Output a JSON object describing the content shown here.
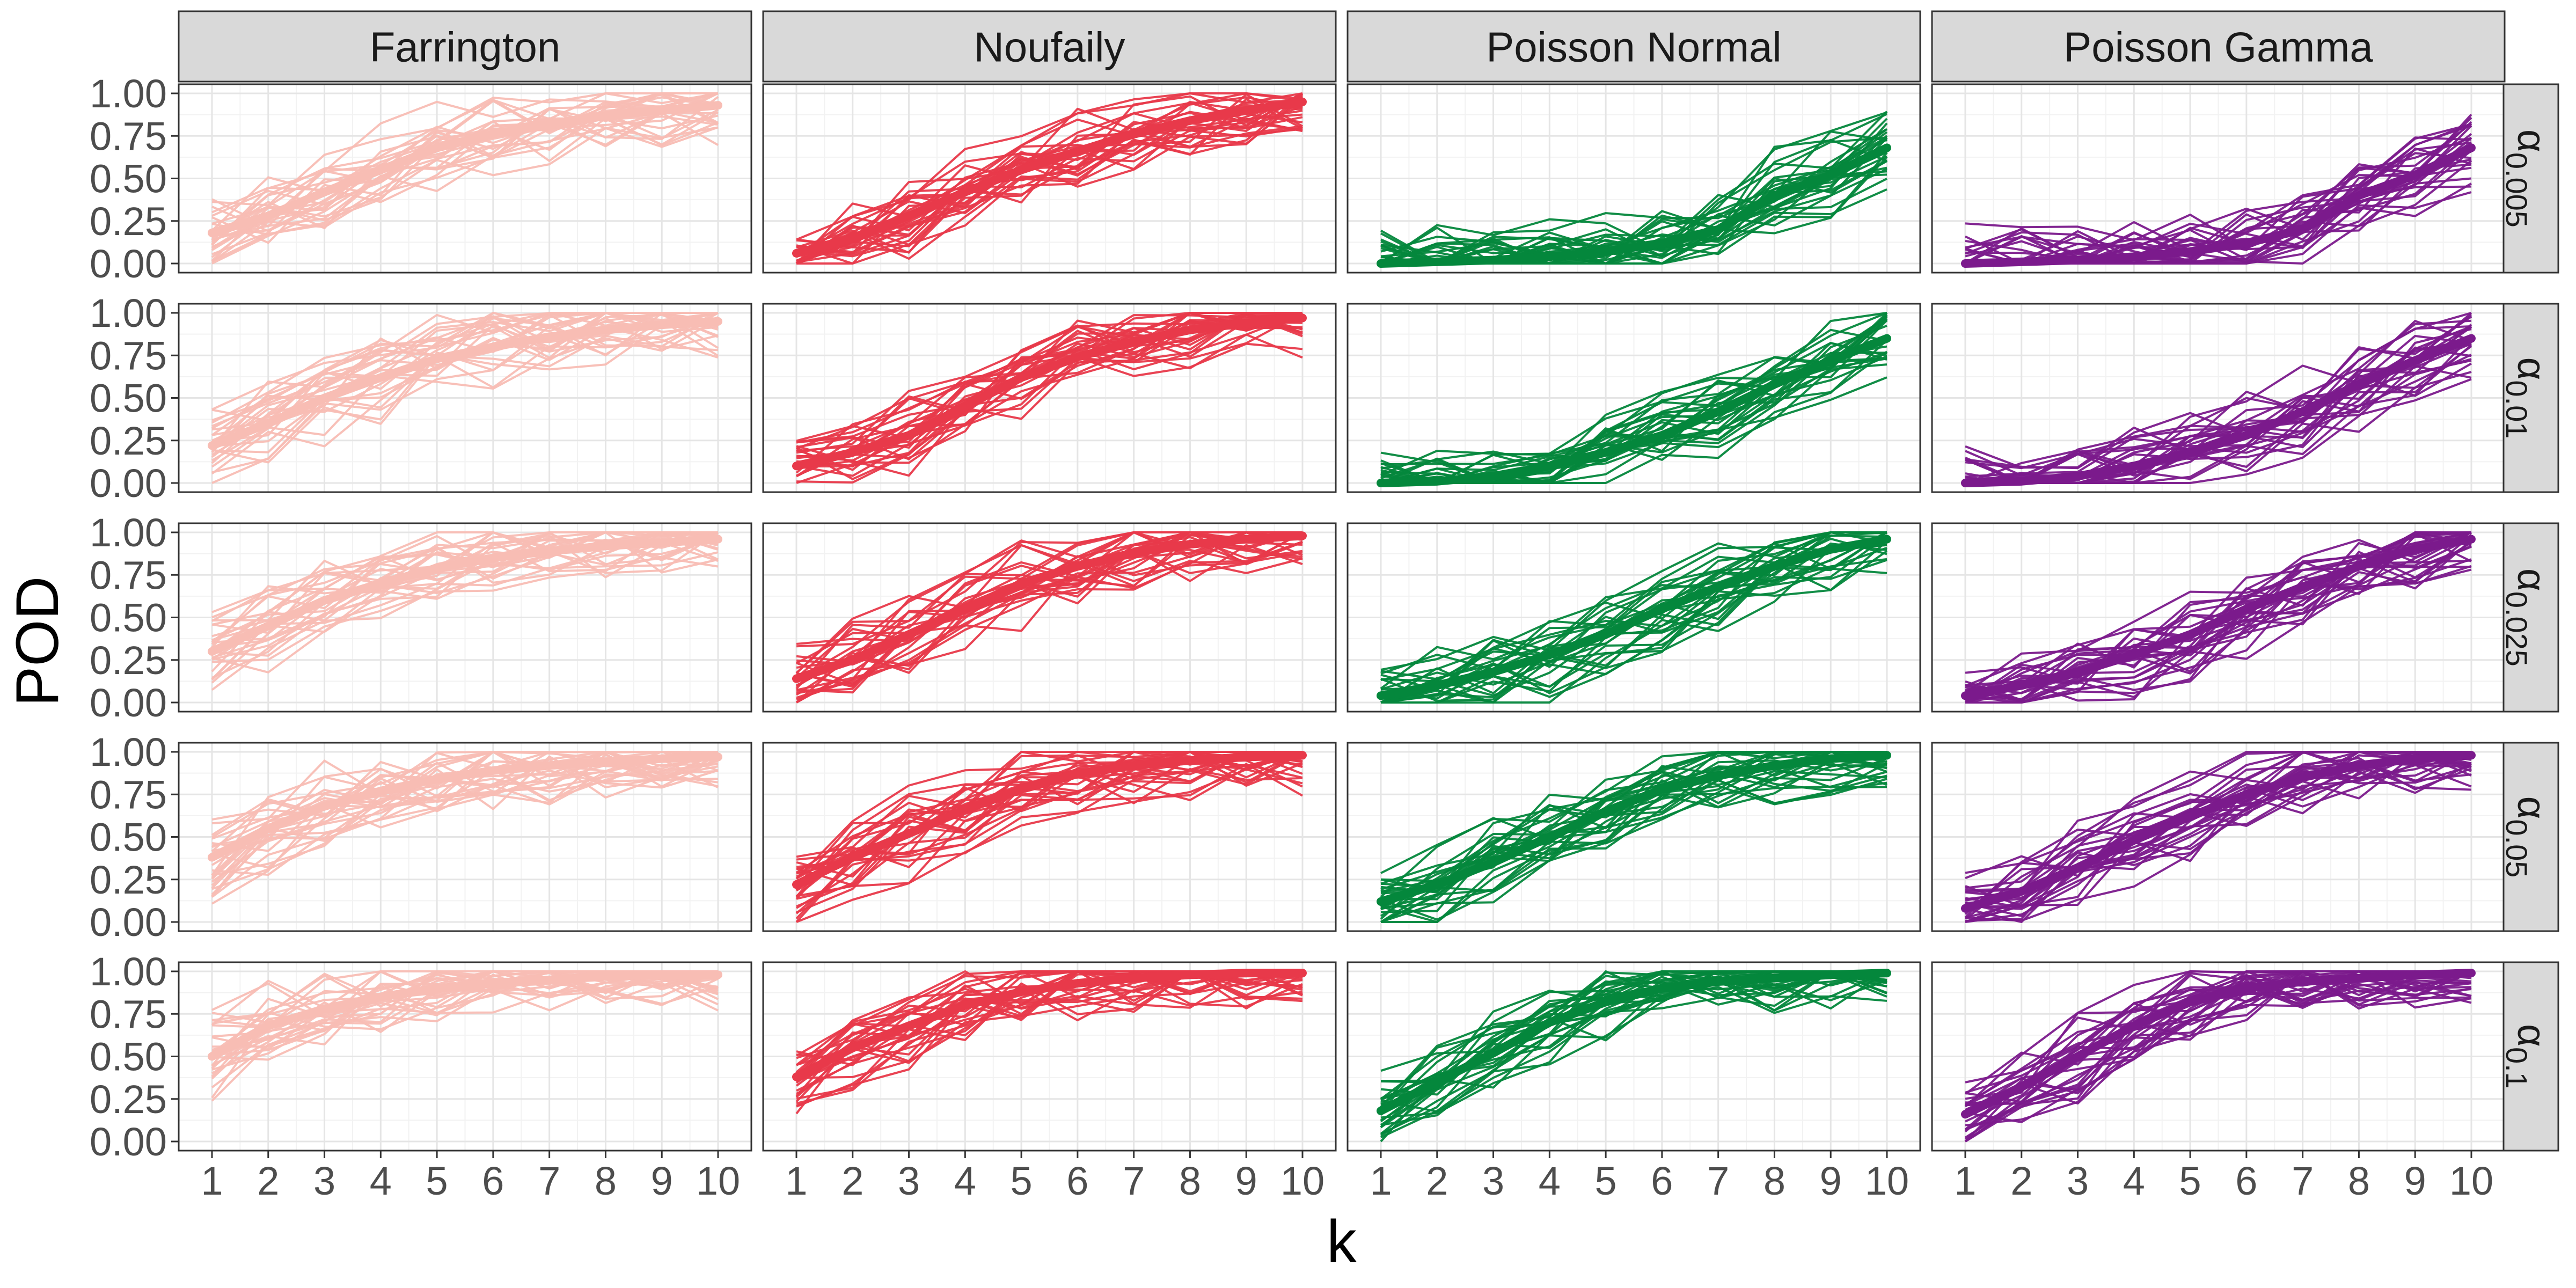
{
  "chart_data": {
    "type": "line",
    "layout": "facet-grid",
    "xlabel": "k",
    "ylabel": "POD",
    "x": [
      1,
      2,
      3,
      4,
      5,
      6,
      7,
      8,
      9,
      10
    ],
    "x_ticks": [
      "1",
      "2",
      "3",
      "4",
      "5",
      "6",
      "7",
      "8",
      "9",
      "10"
    ],
    "y_ticks": [
      "0.00",
      "0.25",
      "0.50",
      "0.75",
      "1.00"
    ],
    "ylim": [
      0,
      1
    ],
    "xlim": [
      1,
      10
    ],
    "grid": true,
    "columns": [
      {
        "name": "Farrington",
        "color": "#F8BDB4"
      },
      {
        "name": "Noufaily",
        "color": "#E8394A"
      },
      {
        "name": "Poisson Normal",
        "color": "#04873C"
      },
      {
        "name": "Poisson Gamma",
        "color": "#7B1A8C"
      }
    ],
    "rows": [
      {
        "base": "α",
        "sub": "0.005"
      },
      {
        "base": "α",
        "sub": "0.01"
      },
      {
        "base": "α",
        "sub": "0.025"
      },
      {
        "base": "α",
        "sub": "0.05"
      },
      {
        "base": "α",
        "sub": "0.1"
      }
    ],
    "mean_series": {
      "Farrington": [
        [
          0.18,
          0.28,
          0.42,
          0.55,
          0.68,
          0.76,
          0.82,
          0.87,
          0.9,
          0.93
        ],
        [
          0.22,
          0.35,
          0.5,
          0.62,
          0.73,
          0.8,
          0.86,
          0.9,
          0.93,
          0.95
        ],
        [
          0.3,
          0.45,
          0.6,
          0.7,
          0.79,
          0.85,
          0.89,
          0.92,
          0.94,
          0.96
        ],
        [
          0.38,
          0.55,
          0.68,
          0.77,
          0.84,
          0.89,
          0.92,
          0.94,
          0.96,
          0.97
        ],
        [
          0.5,
          0.68,
          0.78,
          0.85,
          0.9,
          0.93,
          0.95,
          0.97,
          0.98,
          0.98
        ]
      ],
      "Noufaily": [
        [
          0.06,
          0.15,
          0.28,
          0.42,
          0.55,
          0.66,
          0.76,
          0.84,
          0.9,
          0.95
        ],
        [
          0.1,
          0.18,
          0.28,
          0.45,
          0.62,
          0.74,
          0.83,
          0.9,
          0.94,
          0.97
        ],
        [
          0.14,
          0.25,
          0.4,
          0.55,
          0.7,
          0.8,
          0.88,
          0.93,
          0.96,
          0.98
        ],
        [
          0.22,
          0.38,
          0.52,
          0.66,
          0.78,
          0.87,
          0.92,
          0.95,
          0.97,
          0.98
        ],
        [
          0.38,
          0.55,
          0.68,
          0.8,
          0.88,
          0.93,
          0.96,
          0.98,
          0.99,
          0.99
        ]
      ],
      "Poisson Normal": [
        [
          0.0,
          0.01,
          0.02,
          0.04,
          0.07,
          0.12,
          0.2,
          0.4,
          0.52,
          0.68
        ],
        [
          0.0,
          0.01,
          0.04,
          0.1,
          0.18,
          0.28,
          0.42,
          0.58,
          0.72,
          0.85
        ],
        [
          0.04,
          0.1,
          0.18,
          0.28,
          0.4,
          0.55,
          0.68,
          0.8,
          0.9,
          0.96
        ],
        [
          0.12,
          0.22,
          0.35,
          0.5,
          0.65,
          0.78,
          0.86,
          0.92,
          0.96,
          0.98
        ],
        [
          0.18,
          0.35,
          0.52,
          0.7,
          0.82,
          0.9,
          0.94,
          0.96,
          0.98,
          0.99
        ]
      ],
      "Poisson Gamma": [
        [
          0.0,
          0.01,
          0.02,
          0.04,
          0.07,
          0.12,
          0.2,
          0.4,
          0.52,
          0.68
        ],
        [
          0.0,
          0.01,
          0.04,
          0.1,
          0.18,
          0.28,
          0.42,
          0.58,
          0.72,
          0.85
        ],
        [
          0.04,
          0.1,
          0.18,
          0.28,
          0.4,
          0.55,
          0.68,
          0.8,
          0.9,
          0.96
        ],
        [
          0.08,
          0.18,
          0.32,
          0.48,
          0.62,
          0.75,
          0.85,
          0.92,
          0.96,
          0.98
        ],
        [
          0.16,
          0.32,
          0.5,
          0.68,
          0.82,
          0.9,
          0.94,
          0.96,
          0.98,
          0.99
        ]
      ]
    },
    "replicate_lines_per_panel": 28
  }
}
